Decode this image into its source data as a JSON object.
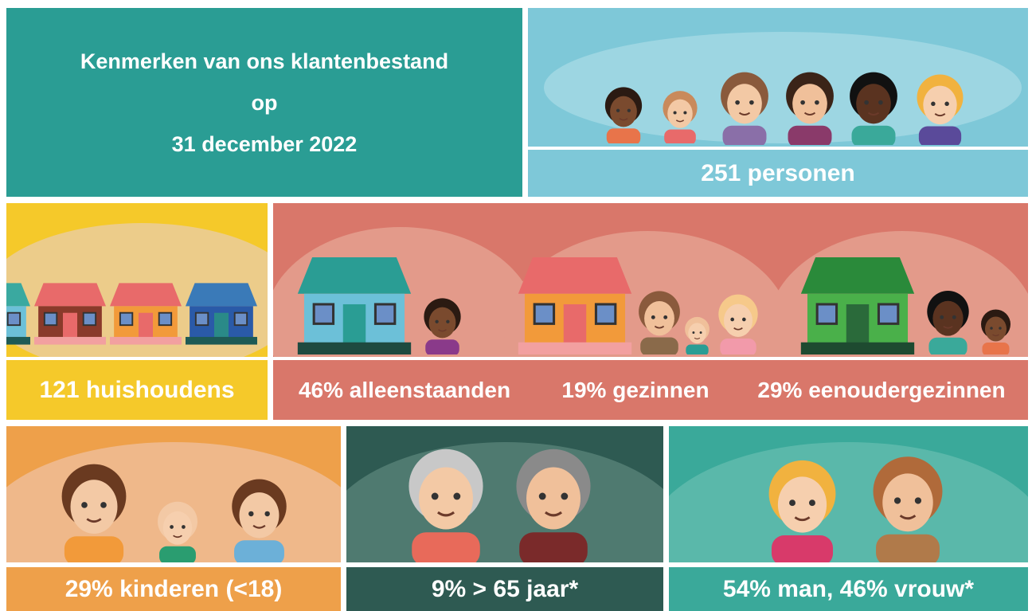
{
  "title": {
    "lines": [
      "Kenmerken van ons klantenbestand",
      "op",
      "31 december 2022"
    ]
  },
  "panels": {
    "persons": "251 personen",
    "households": "121 huishoudens",
    "household_types": [
      "46% alleenstaanden",
      "19% gezinnen",
      "29% eenoudergezinnen"
    ],
    "children": "29% kinderen (<18)",
    "seniors": "9% > 65 jaar*",
    "gender": "54% man, 46% vrouw*"
  }
}
